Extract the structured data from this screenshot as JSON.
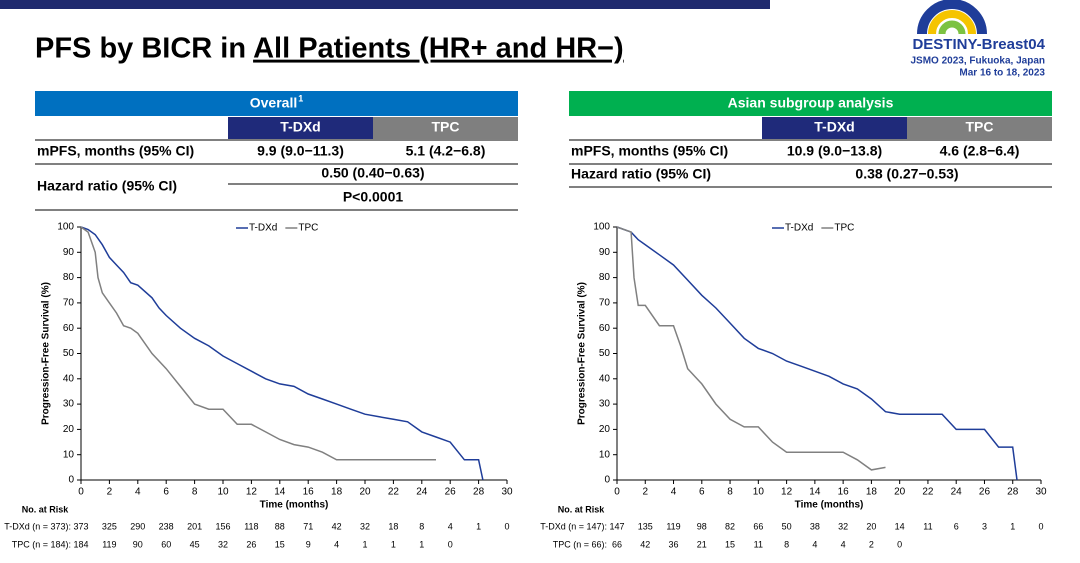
{
  "header": {
    "title": "PFS by BICR in ",
    "title_underlined": "All Patients (HR+ and HR−)",
    "logo": "DESTINY-Breast04",
    "meeting": "JSMO 2023, Fukuoka, Japan",
    "dates": "Mar 16 to 18, 2023"
  },
  "tables": [
    {
      "title": "Overall",
      "title_note": "1",
      "columns": [
        "T-DXd",
        "TPC"
      ],
      "rows": [
        {
          "label": "mPFS, months (95% CI)",
          "cells": [
            "9.9 (9.0−11.3)",
            "5.1 (4.2−6.8)"
          ]
        },
        {
          "label": "Hazard ratio (95% CI)",
          "cells": [
            "0.50 (0.40−0.63)",
            "P<0.0001"
          ]
        }
      ]
    },
    {
      "title": "Asian subgroup analysis",
      "columns": [
        "T-DXd",
        "TPC"
      ],
      "rows": [
        {
          "label": "mPFS, months (95% CI)",
          "cells": [
            "10.9 (9.0−13.8)",
            "4.6 (2.8−6.4)"
          ]
        },
        {
          "label": "Hazard ratio (95% CI)",
          "cells": [
            "0.38 (0.27−0.53)"
          ]
        }
      ]
    }
  ],
  "chart_data": [
    {
      "type": "line",
      "xlabel": "Time (months)",
      "ylabel": "Progression-Free Survival (%)",
      "xlim": [
        0,
        30
      ],
      "xticks": [
        0,
        2,
        4,
        6,
        8,
        10,
        12,
        14,
        16,
        18,
        20,
        22,
        24,
        26,
        28,
        30
      ],
      "ylim": [
        0,
        100
      ],
      "yticks": [
        0,
        10,
        20,
        30,
        40,
        50,
        60,
        70,
        80,
        90,
        100
      ],
      "series": [
        {
          "name": "T-DXd",
          "color": "#1f3d99",
          "x": [
            0,
            0.5,
            1,
            1.5,
            2,
            2.5,
            3,
            3.5,
            4,
            5,
            5.5,
            6,
            7,
            8,
            9,
            10,
            11,
            12,
            13,
            14,
            15,
            16,
            17,
            18,
            19,
            20,
            21,
            22,
            23,
            24,
            25,
            26,
            27,
            28,
            28.3
          ],
          "values": [
            100,
            99,
            97,
            93,
            88,
            85,
            82,
            78,
            77,
            72,
            68,
            65,
            60,
            56,
            53,
            49,
            46,
            43,
            40,
            38,
            37,
            34,
            32,
            30,
            28,
            26,
            25,
            24,
            23,
            19,
            17,
            15,
            8,
            8,
            0
          ]
        },
        {
          "name": "TPC",
          "color": "#808080",
          "x": [
            0,
            0.5,
            1,
            1.2,
            1.5,
            2,
            2.5,
            3,
            3.5,
            4,
            5,
            6,
            7,
            8,
            9,
            10,
            11,
            12,
            13,
            14,
            15,
            16,
            17,
            18,
            19,
            20,
            21,
            22,
            23,
            24,
            25
          ],
          "values": [
            100,
            98,
            90,
            80,
            74,
            70,
            66,
            61,
            60,
            58,
            50,
            44,
            37,
            30,
            28,
            28,
            22,
            22,
            19,
            16,
            14,
            13,
            11,
            8,
            8,
            8,
            8,
            8,
            8,
            8,
            8
          ]
        }
      ],
      "risk_table": {
        "title": "No. at Risk",
        "rows": [
          {
            "label": "T-DXd (n = 373):",
            "values": [
              373,
              325,
              290,
              238,
              201,
              156,
              118,
              88,
              71,
              42,
              32,
              18,
              8,
              4,
              1,
              0
            ]
          },
          {
            "label": "TPC (n = 184):",
            "values": [
              184,
              119,
              90,
              60,
              45,
              32,
              26,
              15,
              9,
              4,
              1,
              1,
              1,
              0
            ]
          }
        ]
      }
    },
    {
      "type": "line",
      "xlabel": "Time (months)",
      "ylabel": "Progression-Free Survival (%)",
      "xlim": [
        0,
        30
      ],
      "xticks": [
        0,
        2,
        4,
        6,
        8,
        10,
        12,
        14,
        16,
        18,
        20,
        22,
        24,
        26,
        28,
        30
      ],
      "ylim": [
        0,
        100
      ],
      "yticks": [
        0,
        10,
        20,
        30,
        40,
        50,
        60,
        70,
        80,
        90,
        100
      ],
      "series": [
        {
          "name": "T-DXd",
          "color": "#1f3d99",
          "x": [
            0,
            1,
            1.5,
            2,
            3,
            4,
            5,
            6,
            7,
            8,
            9,
            10,
            11,
            12,
            13,
            14,
            15,
            16,
            17,
            18,
            19,
            20,
            21,
            22,
            23,
            24,
            25,
            26,
            27,
            28,
            28.3
          ],
          "values": [
            100,
            98,
            95,
            93,
            89,
            85,
            79,
            73,
            68,
            62,
            56,
            52,
            50,
            47,
            45,
            43,
            41,
            38,
            36,
            32,
            27,
            26,
            26,
            26,
            26,
            20,
            20,
            20,
            13,
            13,
            0
          ]
        },
        {
          "name": "TPC",
          "color": "#808080",
          "x": [
            0,
            1,
            1.2,
            1.5,
            2,
            3,
            4,
            4.5,
            5,
            6,
            7,
            8,
            9,
            10,
            11,
            12,
            13,
            14,
            15,
            16,
            17,
            18,
            19
          ],
          "values": [
            100,
            98,
            80,
            69,
            69,
            61,
            61,
            53,
            44,
            38,
            30,
            24,
            21,
            21,
            15,
            11,
            11,
            11,
            11,
            11,
            8,
            4,
            5
          ]
        }
      ],
      "risk_table": {
        "title": "No. at Risk",
        "rows": [
          {
            "label": "T-DXd (n = 147):",
            "values": [
              147,
              135,
              119,
              98,
              82,
              66,
              50,
              38,
              32,
              20,
              14,
              11,
              6,
              3,
              1,
              0
            ]
          },
          {
            "label": "TPC (n = 66):",
            "values": [
              66,
              42,
              36,
              21,
              15,
              11,
              8,
              4,
              4,
              2,
              0
            ]
          }
        ]
      }
    }
  ]
}
